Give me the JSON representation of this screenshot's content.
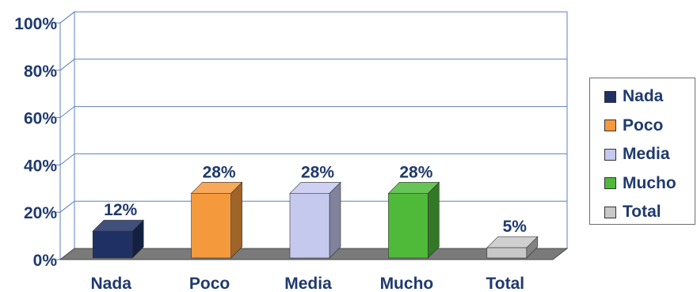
{
  "chart_data": {
    "type": "bar",
    "categories": [
      "Nada",
      "Poco",
      "Media",
      "Mucho",
      "Total"
    ],
    "values": [
      12,
      28,
      28,
      28,
      5
    ],
    "value_labels": [
      "12%",
      "28%",
      "28%",
      "28%",
      "5%"
    ],
    "colors": [
      "#1f3164",
      "#f59a3c",
      "#c5c9ee",
      "#4fb93a",
      "#c8c8c8"
    ],
    "yticks": [
      "0%",
      "20%",
      "40%",
      "60%",
      "80%",
      "100%"
    ],
    "ylim": [
      0,
      100
    ],
    "grid": true,
    "legend_position": "right",
    "three_d": true,
    "legend": [
      {
        "label": "Nada",
        "color": "#1f3164"
      },
      {
        "label": "Poco",
        "color": "#f59a3c"
      },
      {
        "label": "Media",
        "color": "#c5c9ee"
      },
      {
        "label": "Mucho",
        "color": "#4fb93a"
      },
      {
        "label": "Total",
        "color": "#c8c8c8"
      }
    ]
  }
}
